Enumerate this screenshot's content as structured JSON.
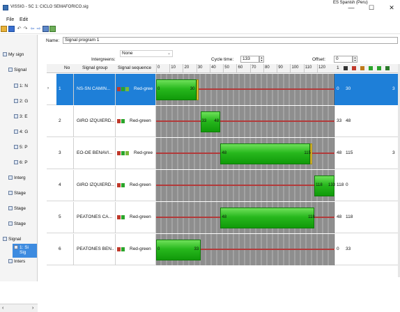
{
  "window": {
    "title": "VISSIG - SC 1: CICLO SEMAFORICO.sig",
    "language": "ES Spanish (Peru)",
    "minimize": "—",
    "maximize": "☐",
    "close": "✕"
  },
  "menu": {
    "file": "File",
    "edit": "Edit"
  },
  "sidebar": {
    "items": [
      {
        "label": "My sign",
        "icon": "tree-root-icon"
      },
      {
        "label": "Signal",
        "icon": "signal-icon"
      },
      {
        "label": "1: N",
        "icon": "signal-group-icon"
      },
      {
        "label": "2: G",
        "icon": "signal-group-icon"
      },
      {
        "label": "3: E",
        "icon": "signal-group-icon"
      },
      {
        "label": "4: G",
        "icon": "signal-group-icon"
      },
      {
        "label": "5: P",
        "icon": "signal-group-icon"
      },
      {
        "label": "6: P",
        "icon": "signal-group-icon"
      },
      {
        "label": "Interg",
        "icon": "intergreen-icon"
      },
      {
        "label": "Stage",
        "icon": "stage-icon"
      },
      {
        "label": "Stage",
        "icon": "stage-icon"
      },
      {
        "label": "Stage",
        "icon": "stage-icon"
      },
      {
        "label": "Signal",
        "icon": "signal-program-icon"
      },
      {
        "label": "1: Si",
        "label2": "Sig",
        "icon": "signal-program-icon"
      },
      {
        "label": "Inters",
        "icon": "interstage-icon"
      }
    ]
  },
  "form": {
    "name_label": "Name:",
    "name_value": "Signal program 1",
    "intergreens_label": "Intergreens:",
    "intergreens_value": "None",
    "cycle_label": "Cycle time:",
    "cycle_value": "133",
    "offset_label": "Offset:",
    "offset_value": "0"
  },
  "table": {
    "headers": {
      "no": "No",
      "group": "Signal group",
      "sequence": "Signal sequence",
      "extra": "1"
    },
    "ticks": [
      "0",
      "10",
      "20",
      "30",
      "40",
      "50",
      "60",
      "70",
      "80",
      "90",
      "100",
      "110",
      "120"
    ],
    "header_colors": [
      "#333333",
      "#c0392b",
      "#c07a1a",
      "#2aa52a",
      "#2aa52a",
      "#2a7a2a"
    ],
    "rows": [
      {
        "no": "1",
        "group": "NS-SN CAMIN...",
        "sequence": "Red-gree",
        "green_start": 0,
        "green_end": 30,
        "start_label": "0",
        "end_label": "30",
        "col1": "0",
        "col2": "30",
        "col3": "3",
        "yellow": true,
        "selected": true
      },
      {
        "no": "2",
        "group": "GIRO IZQUIERD...",
        "sequence": "Red-green",
        "green_start": 33,
        "green_end": 48,
        "start_label": "33",
        "end_label": "48",
        "col1": "33",
        "col2": "48",
        "col3": "",
        "yellow": false,
        "selected": false
      },
      {
        "no": "3",
        "group": "EO-OE BENAVI...",
        "sequence": "Red-gree",
        "green_start": 48,
        "green_end": 115,
        "start_label": "48",
        "end_label": "115",
        "col1": "48",
        "col2": "115",
        "col3": "3",
        "yellow": true,
        "selected": false
      },
      {
        "no": "4",
        "group": "GIRO IZQUIERD...",
        "sequence": "Red-green",
        "green_start": 118,
        "green_end": 133,
        "start_label": "118",
        "end_label": "133",
        "col1": "118",
        "col2": "0",
        "col3": "",
        "yellow": false,
        "selected": false
      },
      {
        "no": "5",
        "group": "PEATONES CA...",
        "sequence": "Red-green",
        "green_start": 48,
        "green_end": 118,
        "start_label": "48",
        "end_label": "118",
        "col1": "48",
        "col2": "118",
        "col3": "",
        "yellow": false,
        "selected": false
      },
      {
        "no": "6",
        "group": "PEATONES BEN...",
        "sequence": "Red-green",
        "green_start": 0,
        "green_end": 33,
        "start_label": "0",
        "end_label": "33",
        "col1": "0",
        "col2": "33",
        "col3": "",
        "yellow": false,
        "selected": false
      }
    ]
  }
}
